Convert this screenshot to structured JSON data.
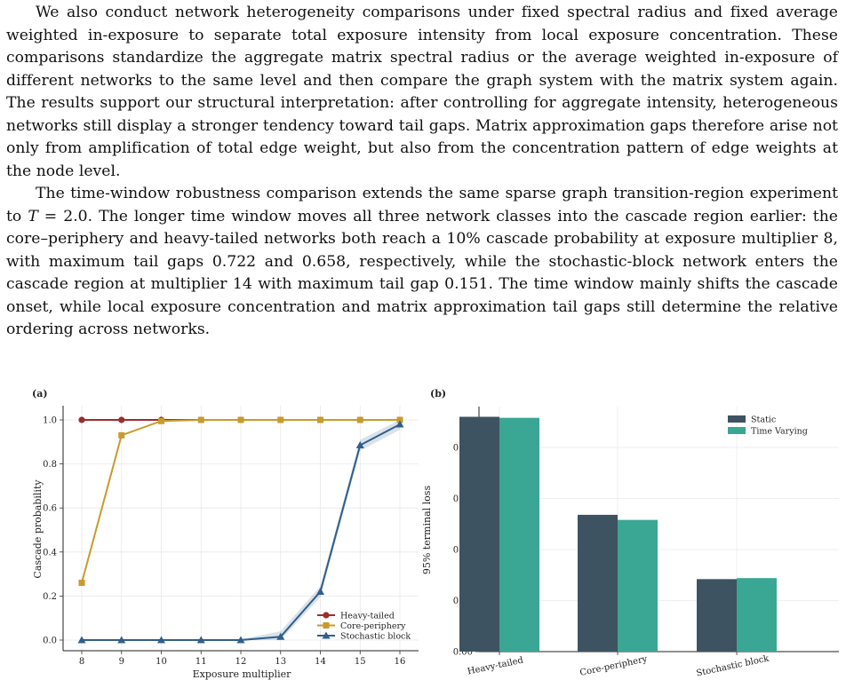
{
  "paragraphs": {
    "p1": "We also conduct network heterogeneity comparisons under fixed spectral radius and fixed average weighted in-exposure to separate total exposure intensity from local exposure concentration. These comparisons standardize the aggregate matrix spectral radius or the average weighted in-exposure of different networks to the same level and then compare the graph system with the matrix system again. The results support our structural interpretation: after controlling for aggregate intensity, heterogeneous networks still display a stronger tendency toward tail gaps. Matrix approximation gaps therefore arise not only from amplification of total edge weight, but also from the concentration pattern of edge weights at the node level.",
    "p2_before": "The time-window robustness comparison extends the same sparse graph transition-region experiment to ",
    "p2_var": "T",
    "p2_after": " = 2.0. The longer time window moves all three network classes into the cascade region earlier: the core–periphery and heavy-tailed networks both reach a 10% cascade probability at exposure multiplier 8, with maximum tail gaps 0.722 and 0.658, respectively, while the stochastic-block network enters the cascade region at multiplier 14 with maximum tail gap 0.151. The time window mainly shifts the cascade onset, while local exposure concentration and matrix approximation tail gaps still determine the relative ordering across networks."
  },
  "chart_data": [
    {
      "panel": "(a)",
      "type": "line",
      "xlabel": "Exposure multiplier",
      "ylabel": "Cascade probability",
      "x": [
        8,
        9,
        10,
        11,
        12,
        13,
        14,
        15,
        16
      ],
      "xlim": [
        8,
        16
      ],
      "ylim": [
        0,
        1
      ],
      "yticks": [
        "0.0",
        "0.2",
        "0.4",
        "0.6",
        "0.8",
        "1.0"
      ],
      "yticks_values": [
        0,
        0.2,
        0.4,
        0.6,
        0.8,
        1.0
      ],
      "grid": true,
      "legend": "bottom-right",
      "series": [
        {
          "name": "Heavy-tailed",
          "color": "#9b2d2d",
          "marker": "circle",
          "values": [
            1.0,
            1.0,
            1.0,
            1.0,
            1.0,
            1.0,
            1.0,
            1.0,
            1.0
          ]
        },
        {
          "name": "Core-periphery",
          "color": "#c99a2e",
          "marker": "square",
          "values": [
            0.26,
            0.93,
            0.995,
            1.0,
            1.0,
            1.0,
            1.0,
            1.0,
            1.0
          ]
        },
        {
          "name": "Stochastic block",
          "color": "#2f5f8a",
          "marker": "triangle",
          "values": [
            0.0,
            0.0,
            0.0,
            0.0,
            0.0,
            0.015,
            0.22,
            0.885,
            0.98
          ]
        }
      ]
    },
    {
      "panel": "(b)",
      "type": "bar",
      "ylabel": "95% terminal loss",
      "categories": [
        "Heavy-tailed",
        "Core-periphery",
        "Stochastic block"
      ],
      "ylim": [
        0,
        0.24
      ],
      "yticks": [
        "0.00",
        "0.05",
        "0.10",
        "0.15",
        "0.20"
      ],
      "yticks_values": [
        0,
        0.05,
        0.1,
        0.15,
        0.2
      ],
      "grid": true,
      "legend": "top-right",
      "series": [
        {
          "name": "Static",
          "color": "#3d5361",
          "values": [
            0.23,
            0.134,
            0.071
          ]
        },
        {
          "name": "Time Varying",
          "color": "#3aa694",
          "values": [
            0.229,
            0.129,
            0.072
          ]
        }
      ]
    }
  ]
}
